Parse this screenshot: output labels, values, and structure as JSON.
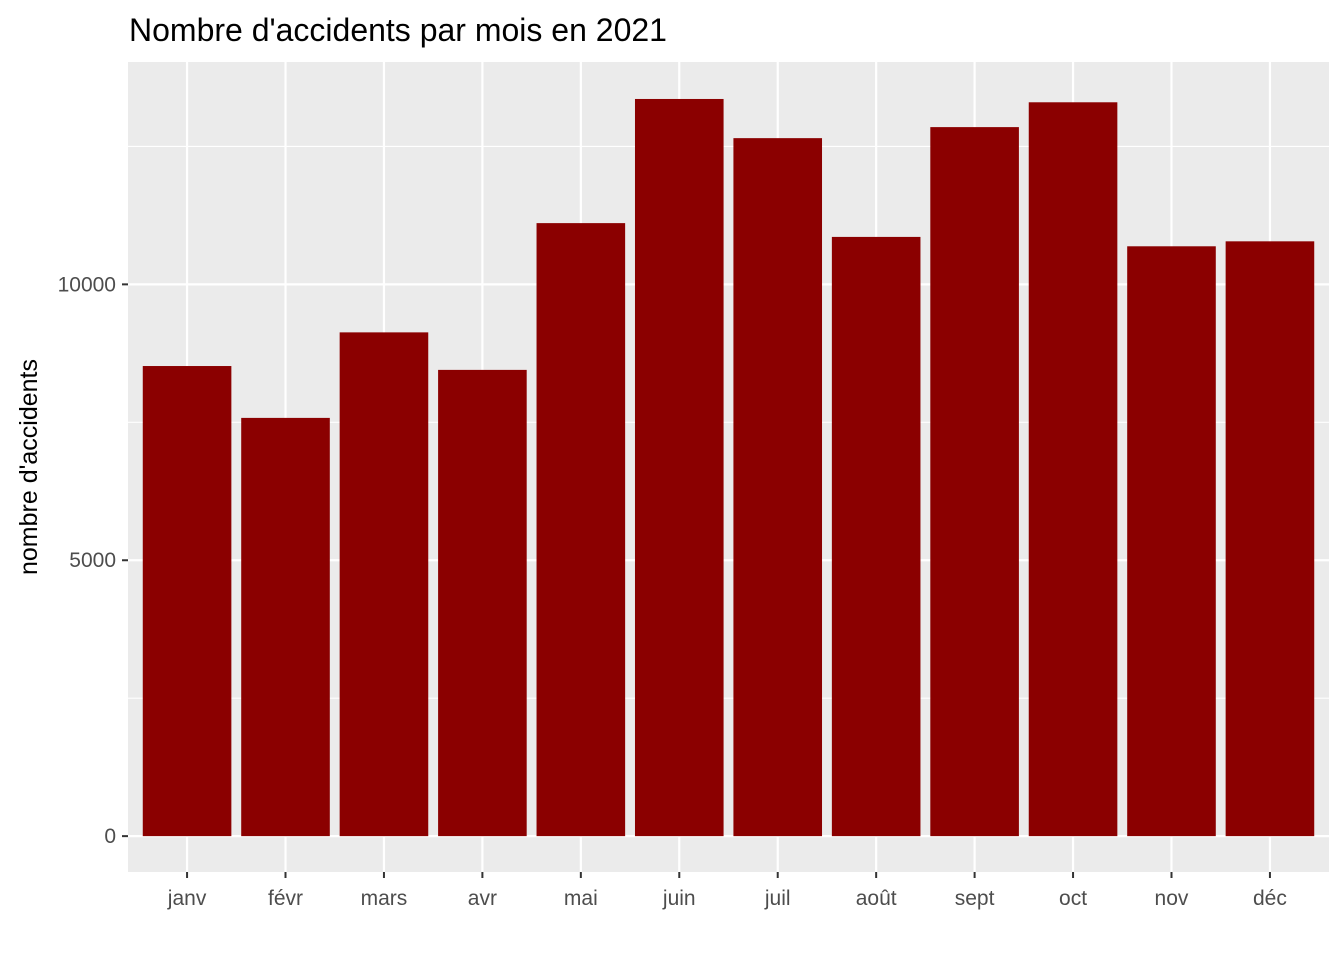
{
  "chart_data": {
    "type": "bar",
    "title": "Nombre d'accidents par mois en 2021",
    "xlabel": "",
    "ylabel": "nombre d'accidents",
    "categories": [
      "janv",
      "févr",
      "mars",
      "avr",
      "mai",
      "juin",
      "juil",
      "août",
      "sept",
      "oct",
      "nov",
      "déc"
    ],
    "values": [
      8520,
      7580,
      9130,
      8450,
      11110,
      13360,
      12650,
      10860,
      12850,
      13300,
      10690,
      10780
    ],
    "y_ticks": [
      0,
      5000,
      10000
    ],
    "y_tick_labels": [
      "0",
      "5000",
      "10000"
    ],
    "ylim": [
      -650,
      14030
    ],
    "grid": true,
    "colors": {
      "bar": "#8b0000",
      "panel_background": "#ebebeb",
      "grid": "#ffffff",
      "tick_label": "#4d4d4d",
      "tick_mark": "#333333"
    }
  }
}
